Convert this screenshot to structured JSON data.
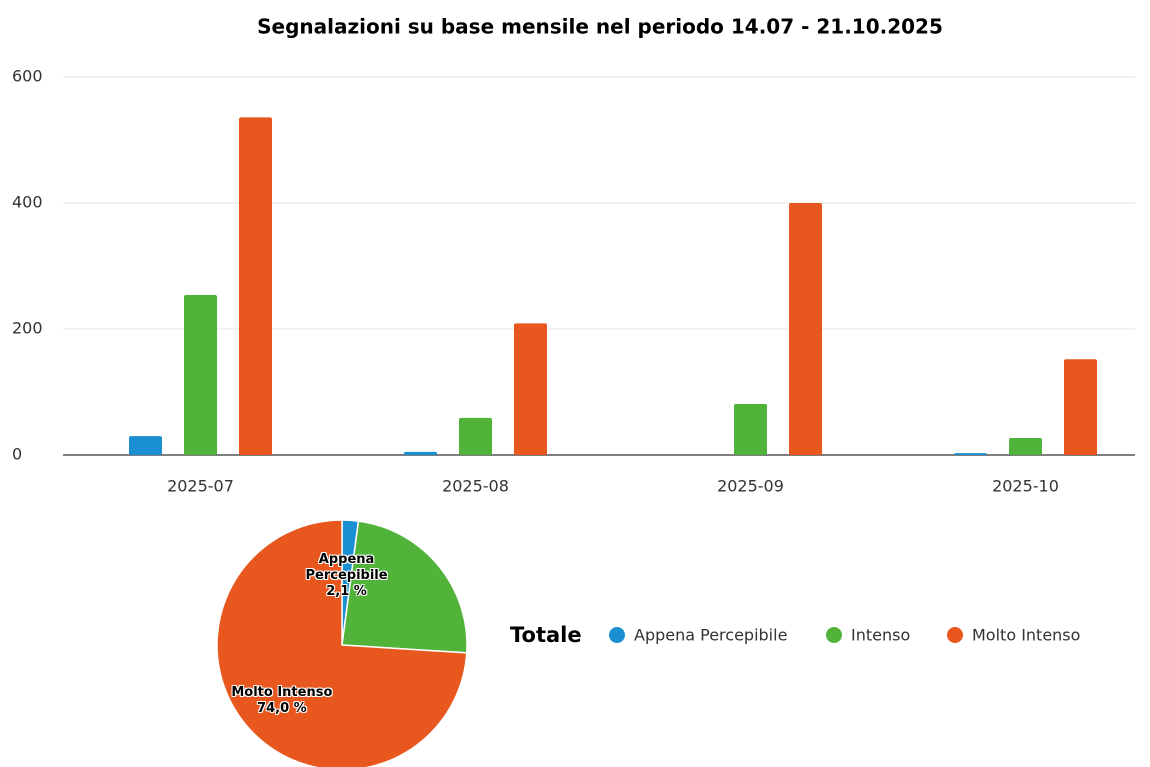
{
  "chart_data": [
    {
      "type": "bar",
      "title": "Segnalazioni su base mensile nel periodo 14.07 - 21.10.2025",
      "categories": [
        "2025-07",
        "2025-08",
        "2025-09",
        "2025-10"
      ],
      "series": [
        {
          "name": "Appena Percepibile",
          "color": "#1a8fd1",
          "values": [
            30,
            5,
            0,
            3
          ]
        },
        {
          "name": "Intenso",
          "color": "#52b33a",
          "values": [
            254,
            59,
            81,
            27
          ]
        },
        {
          "name": "Molto Intenso",
          "color": "#e8571e",
          "values": [
            536,
            209,
            400,
            152
          ]
        }
      ],
      "ylim": [
        0,
        600
      ],
      "yticks": [
        0,
        200,
        400,
        600
      ],
      "grid": true
    },
    {
      "type": "pie",
      "title": "Totale",
      "categories": [
        "Appena Percepibile",
        "Intenso",
        "Molto Intenso"
      ],
      "values": [
        2.1,
        23.9,
        74.0
      ],
      "value_labels": [
        "2,1 %",
        null,
        "74,0 %"
      ],
      "colors": [
        "#1a8fd1",
        "#52b33a",
        "#e8571e"
      ]
    }
  ]
}
